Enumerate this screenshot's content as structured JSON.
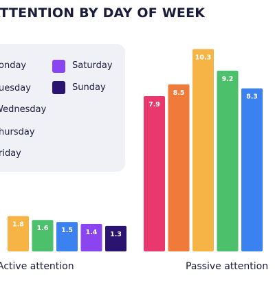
{
  "title": "ATTENTION BY DAY OF WEEK",
  "chart_data": {
    "type": "bar",
    "title": "ATTENTION BY DAY OF WEEK",
    "categories": [
      "Active attention",
      "Passive attention"
    ],
    "series": [
      {
        "name": "Monday",
        "color": "#e8386d",
        "values": [
          null,
          7.9
        ]
      },
      {
        "name": "Tuesday",
        "color": "#f07a3a",
        "values": [
          null,
          8.5
        ]
      },
      {
        "name": "Wednesday",
        "color": "#f5b445",
        "values": [
          1.8,
          10.3
        ]
      },
      {
        "name": "Thursday",
        "color": "#4cc06b",
        "values": [
          1.6,
          9.2
        ]
      },
      {
        "name": "Friday",
        "color": "#3b82f0",
        "values": [
          1.5,
          8.3
        ]
      },
      {
        "name": "Saturday",
        "color": "#8b45f0",
        "values": [
          1.4,
          null
        ]
      },
      {
        "name": "Sunday",
        "color": "#2a1470",
        "values": [
          1.3,
          null
        ]
      }
    ],
    "legend_position": "top-left",
    "grid": false
  },
  "legend": {
    "monday": "onday",
    "tuesday": "uesday",
    "wednesday": "Wednesday",
    "thursday": "hursday",
    "friday": "riday",
    "saturday": "Saturday",
    "sunday": "Sunday"
  },
  "labels": {
    "active": "Active attention",
    "passive": "Passive attention"
  }
}
